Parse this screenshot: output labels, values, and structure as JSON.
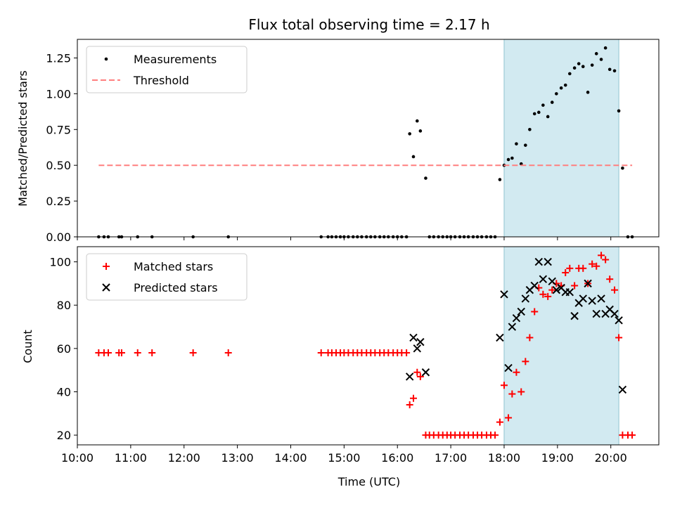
{
  "chart_data": [
    {
      "type": "scatter",
      "title": "Flux total observing time = 2.17 h",
      "xlabel": "",
      "ylabel": "Matched/Predicted stars",
      "ylim": [
        0,
        1.38
      ],
      "yticks": [
        "0.00",
        "0.25",
        "0.50",
        "0.75",
        "1.00",
        "1.25"
      ],
      "ytick_values": [
        0,
        0.25,
        0.5,
        0.75,
        1.0,
        1.25
      ],
      "highlight": {
        "x_start": 18.0,
        "x_end": 20.15,
        "color": "#add8e6"
      },
      "legend": {
        "placement": "top-left",
        "entries": [
          "Measurements",
          "Threshold"
        ]
      },
      "series": [
        {
          "name": "Measurements",
          "kind": "points",
          "color": "#000000",
          "x": [
            10.4,
            10.5,
            10.58,
            10.78,
            10.83,
            11.13,
            11.4,
            12.17,
            12.83,
            14.57,
            14.7,
            14.77,
            14.85,
            14.93,
            15.0,
            15.08,
            15.17,
            15.25,
            15.33,
            15.42,
            15.5,
            15.58,
            15.67,
            15.75,
            15.83,
            15.92,
            16.0,
            16.08,
            16.17,
            16.23,
            16.3,
            16.37,
            16.43,
            16.53,
            16.6,
            16.68,
            16.77,
            16.85,
            16.93,
            17.0,
            17.08,
            17.17,
            17.25,
            17.33,
            17.42,
            17.5,
            17.58,
            17.67,
            17.75,
            17.83,
            17.92,
            18.0,
            18.08,
            18.15,
            18.23,
            18.32,
            18.4,
            18.48,
            18.57,
            18.65,
            18.73,
            18.82,
            18.9,
            18.98,
            19.07,
            19.15,
            19.23,
            19.32,
            19.4,
            19.48,
            19.57,
            19.65,
            19.73,
            19.82,
            19.9,
            19.98,
            20.07,
            20.15,
            20.22,
            20.32,
            20.4
          ],
          "y": [
            0,
            0,
            0,
            0,
            0,
            0,
            0,
            0,
            0,
            0,
            0,
            0,
            0,
            0,
            0,
            0,
            0,
            0,
            0,
            0,
            0,
            0,
            0,
            0,
            0,
            0,
            0,
            0,
            0,
            0.72,
            0.56,
            0.81,
            0.74,
            0.41,
            0,
            0,
            0,
            0,
            0,
            0,
            0,
            0,
            0,
            0,
            0,
            0,
            0,
            0,
            0,
            0,
            0.4,
            0.5,
            0.54,
            0.55,
            0.65,
            0.51,
            0.64,
            0.75,
            0.86,
            0.87,
            0.92,
            0.84,
            0.94,
            1.0,
            1.04,
            1.06,
            1.14,
            1.18,
            1.21,
            1.19,
            1.01,
            1.2,
            1.28,
            1.24,
            1.32,
            1.17,
            1.16,
            0.88,
            0.48,
            0,
            0
          ]
        },
        {
          "name": "Threshold",
          "kind": "dashed-line",
          "color": "#ff7f7f",
          "x": [
            10.4,
            20.4
          ],
          "y": [
            0.5,
            0.5
          ]
        }
      ]
    },
    {
      "type": "scatter",
      "title": "",
      "xlabel": "Time (UTC)",
      "ylabel": "Count",
      "ylim": [
        15.5,
        107
      ],
      "yticks": [
        "20",
        "40",
        "60",
        "80",
        "100"
      ],
      "ytick_values": [
        20,
        40,
        60,
        80,
        100
      ],
      "xlim": [
        10.0,
        20.9
      ],
      "xticks": [
        "10:00",
        "11:00",
        "12:00",
        "13:00",
        "14:00",
        "15:00",
        "16:00",
        "17:00",
        "18:00",
        "19:00",
        "20:00"
      ],
      "xtick_values": [
        10,
        11,
        12,
        13,
        14,
        15,
        16,
        17,
        18,
        19,
        20
      ],
      "highlight": {
        "x_start": 18.0,
        "x_end": 20.15,
        "color": "#add8e6"
      },
      "legend": {
        "placement": "top-left",
        "entries": [
          "Matched stars",
          "Predicted stars"
        ]
      },
      "series": [
        {
          "name": "Matched stars",
          "kind": "plus",
          "color": "#ff0000",
          "x": [
            10.4,
            10.5,
            10.58,
            10.78,
            10.83,
            11.13,
            11.4,
            12.17,
            12.83,
            14.57,
            14.7,
            14.77,
            14.85,
            14.93,
            15.0,
            15.08,
            15.17,
            15.25,
            15.33,
            15.42,
            15.5,
            15.58,
            15.67,
            15.75,
            15.83,
            15.92,
            16.0,
            16.08,
            16.17,
            16.23,
            16.3,
            16.37,
            16.43,
            16.53,
            16.6,
            16.68,
            16.77,
            16.85,
            16.93,
            17.0,
            17.08,
            17.17,
            17.25,
            17.33,
            17.42,
            17.5,
            17.58,
            17.67,
            17.75,
            17.83,
            17.92,
            18.0,
            18.08,
            18.15,
            18.23,
            18.32,
            18.4,
            18.48,
            18.57,
            18.65,
            18.73,
            18.82,
            18.9,
            18.98,
            19.07,
            19.15,
            19.23,
            19.32,
            19.4,
            19.48,
            19.57,
            19.65,
            19.73,
            19.82,
            19.9,
            19.98,
            20.07,
            20.15,
            20.22,
            20.32,
            20.4
          ],
          "y": [
            58,
            58,
            58,
            58,
            58,
            58,
            58,
            58,
            58,
            58,
            58,
            58,
            58,
            58,
            58,
            58,
            58,
            58,
            58,
            58,
            58,
            58,
            58,
            58,
            58,
            58,
            58,
            58,
            58,
            34,
            37,
            49,
            47,
            20,
            20,
            20,
            20,
            20,
            20,
            20,
            20,
            20,
            20,
            20,
            20,
            20,
            20,
            20,
            20,
            20,
            26,
            43,
            28,
            39,
            49,
            40,
            54,
            65,
            77,
            88,
            85,
            84,
            87,
            90,
            89,
            95,
            97,
            89,
            97,
            97,
            90,
            99,
            98,
            103,
            101,
            92,
            87,
            65,
            20,
            20,
            20
          ]
        },
        {
          "name": "Predicted stars",
          "kind": "x",
          "color": "#000000",
          "x": [
            16.23,
            16.3,
            16.37,
            16.43,
            16.53,
            17.92,
            18.0,
            18.08,
            18.15,
            18.23,
            18.32,
            18.4,
            18.48,
            18.57,
            18.65,
            18.73,
            18.82,
            18.9,
            18.98,
            19.07,
            19.15,
            19.23,
            19.32,
            19.4,
            19.48,
            19.57,
            19.65,
            19.73,
            19.82,
            19.9,
            19.98,
            20.07,
            20.15,
            20.22
          ],
          "y": [
            47,
            65,
            60,
            63,
            49,
            65,
            85,
            51,
            70,
            74,
            77,
            83,
            87,
            89,
            100,
            92,
            100,
            91,
            87,
            88,
            86,
            86,
            75,
            81,
            83,
            90,
            82,
            76,
            83,
            76,
            78,
            76,
            73,
            41
          ]
        }
      ]
    }
  ]
}
